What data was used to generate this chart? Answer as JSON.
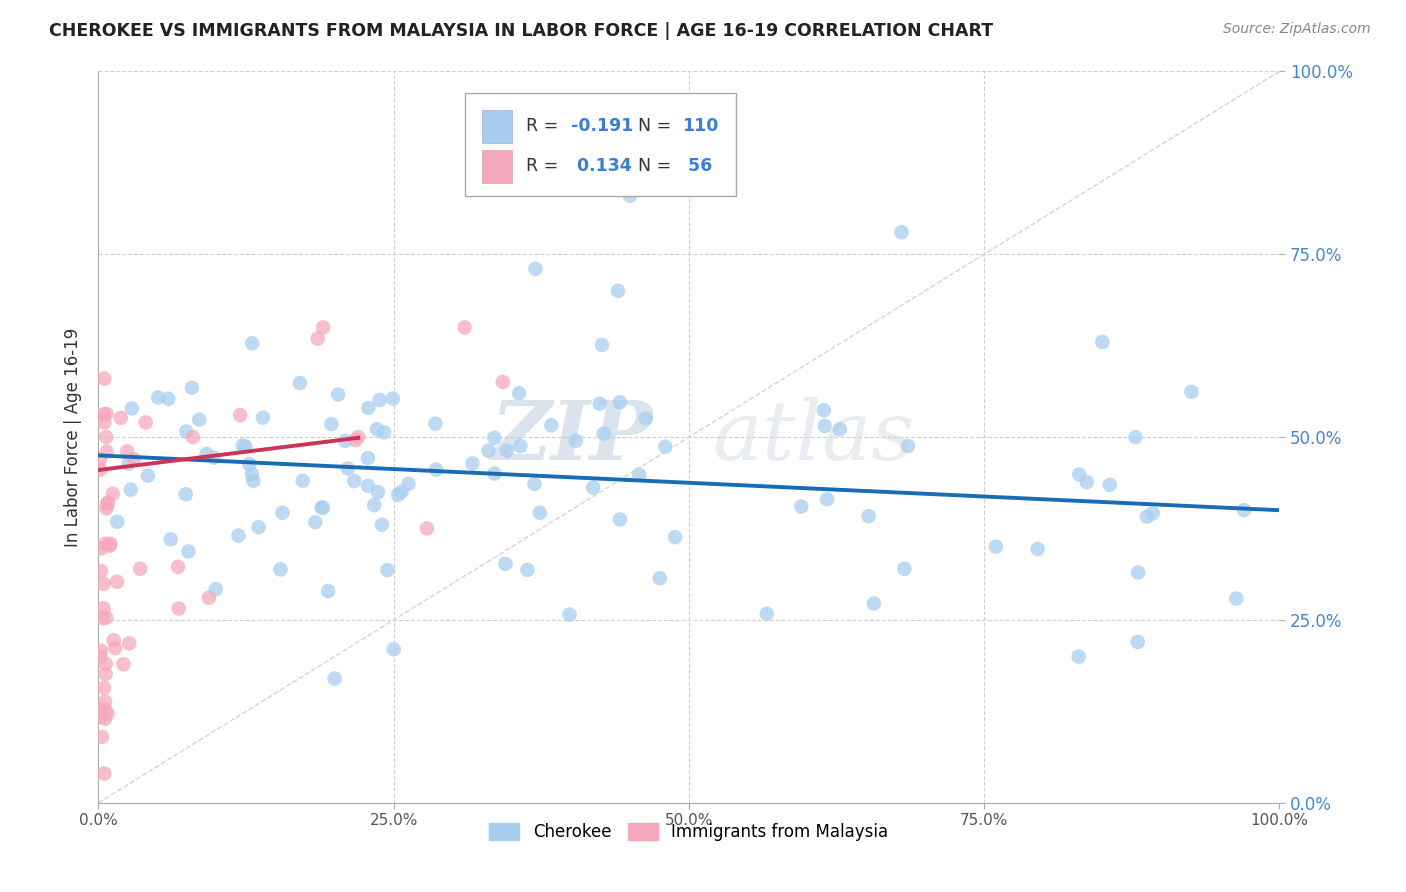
{
  "title": "CHEROKEE VS IMMIGRANTS FROM MALAYSIA IN LABOR FORCE | AGE 16-19 CORRELATION CHART",
  "source": "Source: ZipAtlas.com",
  "ylabel": "In Labor Force | Age 16-19",
  "xlim": [
    0.0,
    1.0
  ],
  "ylim": [
    0.0,
    1.0
  ],
  "xticks": [
    0.0,
    0.25,
    0.5,
    0.75,
    1.0
  ],
  "yticks": [
    0.0,
    0.25,
    0.5,
    0.75,
    1.0
  ],
  "xticklabels": [
    "0.0%",
    "25.0%",
    "50.0%",
    "75.0%",
    "100.0%"
  ],
  "yticklabels": [
    "0.0%",
    "25.0%",
    "50.0%",
    "75.0%",
    "100.0%"
  ],
  "cherokee_color": "#a8cef0",
  "malaysia_color": "#f5a8bb",
  "cherokee_R": -0.191,
  "cherokee_N": 110,
  "malaysia_R": 0.134,
  "malaysia_N": 56,
  "legend_cherokee": "Cherokee",
  "legend_malaysia": "Immigrants from Malaysia",
  "watermark_zip": "ZIP",
  "watermark_atlas": "atlas",
  "blue_line_color": "#1a6bb5",
  "pink_line_color": "#cc3355",
  "ref_line_color": "#d0d0d0",
  "grid_color": "#d0d0d0",
  "bg_color": "#ffffff",
  "right_tick_color": "#4488cc",
  "title_color": "#222222",
  "source_color": "#888888"
}
